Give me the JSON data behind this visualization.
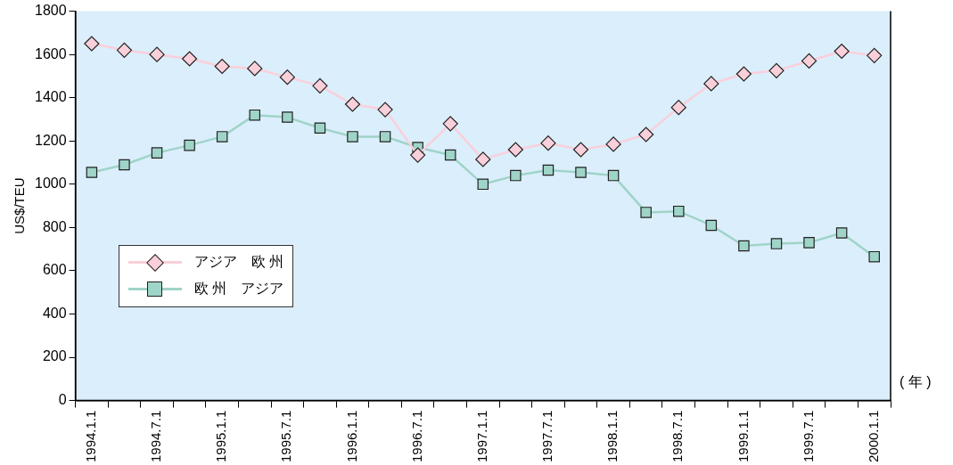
{
  "chart_data": {
    "type": "line",
    "categories": [
      "1994.1.1",
      null,
      "1994.7.1",
      null,
      "1995.1.1",
      null,
      "1995.7.1",
      null,
      "1996.1.1",
      null,
      "1996.7.1",
      null,
      "1997.1.1",
      null,
      "1997.7.1",
      null,
      "1998.1.1",
      null,
      "1998.7.1",
      null,
      "1999.1.1",
      null,
      "1999.7.1",
      null,
      "2000.1.1"
    ],
    "series": [
      {
        "name": "アジア　欧 州",
        "color": "#f9d0da",
        "marker": "diamond",
        "values": [
          1650,
          1620,
          1600,
          1580,
          1545,
          1535,
          1495,
          1455,
          1370,
          1345,
          1135,
          1280,
          1115,
          1160,
          1190,
          1160,
          1185,
          1230,
          1355,
          1465,
          1510,
          1525,
          1570,
          1615,
          1595
        ]
      },
      {
        "name": "欧 州　アジア",
        "color": "#9fd4c8",
        "marker": "square",
        "values": [
          1055,
          1090,
          1145,
          1180,
          1220,
          1320,
          1310,
          1260,
          1220,
          1220,
          1170,
          1135,
          1000,
          1040,
          1065,
          1055,
          1040,
          870,
          875,
          810,
          715,
          725,
          730,
          775,
          665
        ]
      }
    ],
    "ylabel": "US$/TEU",
    "ylim": [
      0,
      1800
    ],
    "yticks": [
      0,
      200,
      400,
      600,
      800,
      1000,
      1200,
      1400,
      1600,
      1800
    ],
    "annotations": [
      "( 年 )"
    ],
    "grid": false,
    "legend": "bottom left"
  }
}
